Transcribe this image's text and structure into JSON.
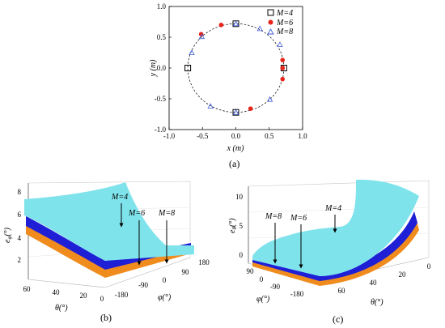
{
  "chart_data": [
    {
      "type": "scatter",
      "panel_label": "(a)",
      "xlabel": "x (m)",
      "ylabel": "y (m)",
      "xlim": [
        -1.0,
        1.0
      ],
      "ylim": [
        -1.0,
        1.0
      ],
      "x_ticks": [
        "-1.0",
        "-0.5",
        "0.0",
        "0.5",
        "1.0"
      ],
      "y_ticks": [
        "1.0",
        "0.5",
        "0.0",
        "-0.5",
        "-1.0"
      ],
      "circle_radius": 0.72,
      "legend": [
        {
          "label": "M=4",
          "marker": "square-open",
          "color": "#000000"
        },
        {
          "label": "M=6",
          "marker": "circle-filled",
          "color": "#e8231a"
        },
        {
          "label": "M=8",
          "marker": "triangle-open",
          "color": "#3b5bdb"
        }
      ],
      "series": [
        {
          "name": "M=4",
          "x": [
            0.0,
            0.72,
            0.0,
            -0.72
          ],
          "y": [
            0.72,
            0.0,
            -0.72,
            0.0
          ]
        },
        {
          "name": "M=6",
          "x": [
            0.7,
            0.7,
            0.7,
            -0.52,
            -0.22,
            0.22
          ],
          "y": [
            0.13,
            -0.18,
            0.0,
            0.55,
            0.7,
            -0.66
          ]
        },
        {
          "name": "M=8",
          "x": [
            0.66,
            0.51,
            -0.66,
            -0.38,
            0.0,
            0.0,
            0.36,
            -0.51
          ],
          "y": [
            0.38,
            -0.51,
            0.25,
            -0.62,
            0.72,
            -0.72,
            0.64,
            0.51
          ]
        }
      ]
    },
    {
      "type": "surface",
      "panel_label": "(b)",
      "zlabel": "eφ(°)",
      "xlabel": "θ(°)",
      "ylabel": "φ(°)",
      "z_ticks": [
        "8",
        "6",
        "4",
        "2"
      ],
      "theta_ticks": [
        "60",
        "40",
        "20",
        "0"
      ],
      "phi_ticks": [
        "-180",
        "-90",
        "0",
        "90",
        "180"
      ],
      "surfaces": [
        {
          "name": "M=4",
          "color": "#7fe3ec"
        },
        {
          "name": "M=6",
          "color": "#1f1fd6"
        },
        {
          "name": "M=8",
          "color": "#f08c1e"
        }
      ],
      "annotations": [
        "M=4",
        "M=6",
        "M=8"
      ]
    },
    {
      "type": "surface",
      "panel_label": "(c)",
      "zlabel": "eθ(°)",
      "xlabel": "θ(°)",
      "ylabel": "φ(°)",
      "z_ticks": [
        "10",
        "5",
        "0"
      ],
      "theta_ticks": [
        "60",
        "40",
        "20",
        "0"
      ],
      "phi_ticks": [
        "90",
        "0",
        "-90",
        "-180"
      ],
      "surfaces": [
        {
          "name": "M=4",
          "color": "#7fe3ec"
        },
        {
          "name": "M=6",
          "color": "#1f1fd6"
        },
        {
          "name": "M=8",
          "color": "#f08c1e"
        }
      ],
      "annotations": [
        "M=8",
        "M=6",
        "M=4"
      ]
    }
  ]
}
